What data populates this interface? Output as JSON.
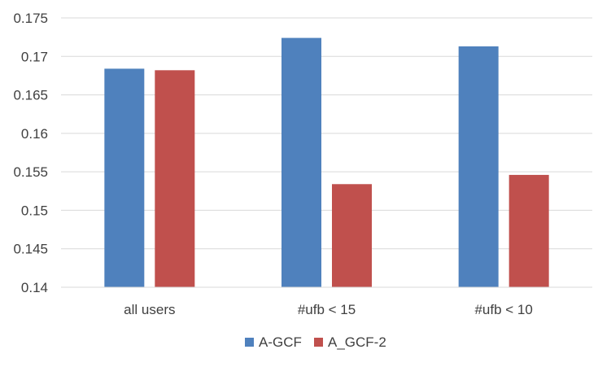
{
  "chart_data": {
    "type": "bar",
    "categories": [
      "all users",
      "#ufb < 15",
      "#ufb < 10"
    ],
    "series": [
      {
        "name": "A-GCF",
        "values": [
          0.1684,
          0.1724,
          0.1713
        ],
        "color": "#4f81bd"
      },
      {
        "name": "A_GCF-2",
        "values": [
          0.1682,
          0.1534,
          0.1546
        ],
        "color": "#c0504d"
      }
    ],
    "y_ticks": [
      "0.14",
      "0.145",
      "0.15",
      "0.155",
      "0.16",
      "0.165",
      "0.17",
      "0.175"
    ],
    "ylim": [
      0.14,
      0.175
    ],
    "grid": true,
    "gridline_color": "#d9d9d9",
    "legend_position": "bottom"
  }
}
